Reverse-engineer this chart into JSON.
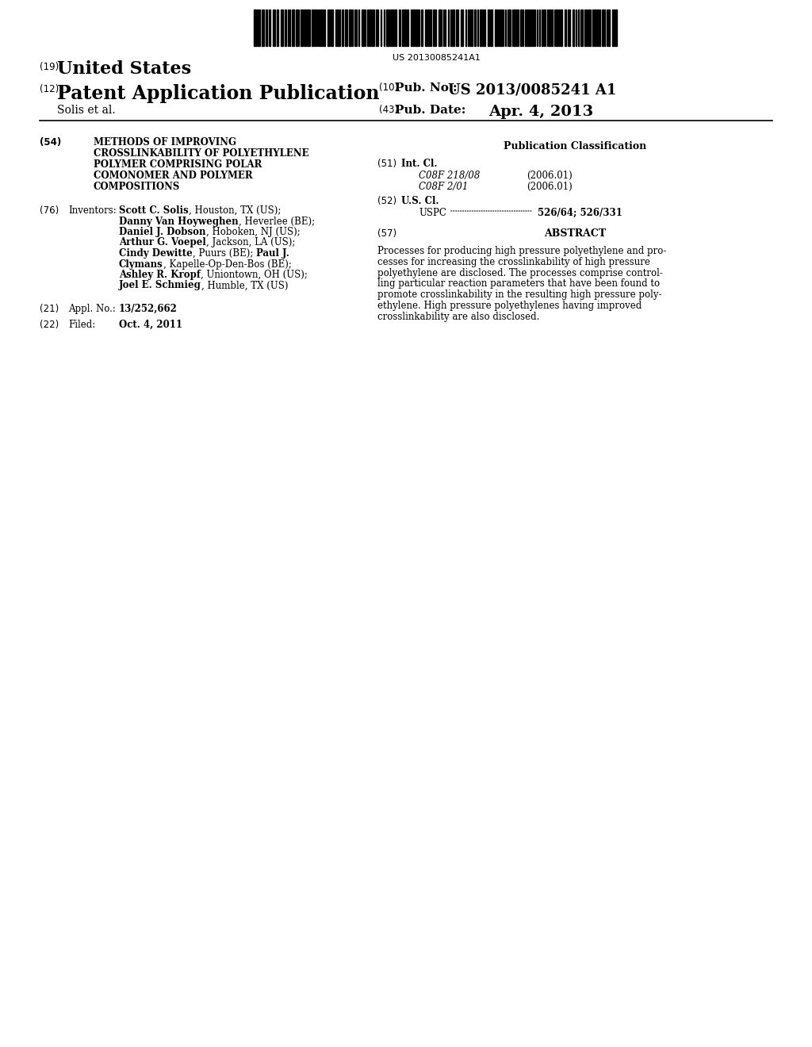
{
  "background_color": "#ffffff",
  "barcode_text": "US 20130085241A1",
  "label_19": "(19)",
  "united_states": "United States",
  "label_12": "(12)",
  "patent_app_pub": "Patent Application Publication",
  "label_10": "(10)",
  "pub_no_label": "Pub. No.:",
  "pub_no_value": "US 2013/0085241 A1",
  "author_line": "Solis et al.",
  "label_43": "(43)",
  "pub_date_label": "Pub. Date:",
  "pub_date_value": "Apr. 4, 2013",
  "label_54": "(54)",
  "title_lines": [
    "METHODS OF IMPROVING",
    "CROSSLINKABILITY OF POLYETHYLENE",
    "POLYMER COMPRISING POLAR",
    "COMONOMER AND POLYMER",
    "COMPOSITIONS"
  ],
  "pub_class_header": "Publication Classification",
  "label_51": "(51)",
  "int_cl_label": "Int. Cl.",
  "int_cl_1_code": "C08F 218/08",
  "int_cl_1_year": "(2006.01)",
  "int_cl_2_code": "C08F 2/01",
  "int_cl_2_year": "(2006.01)",
  "label_52": "(52)",
  "us_cl_label": "U.S. Cl.",
  "uspc_label": "USPC",
  "uspc_value": "526/64; 526/331",
  "label_76": "(76)",
  "inventors_label": "Inventors:",
  "inventors_lines": [
    [
      [
        "Scott C. Solis",
        true
      ],
      [
        ", Houston, TX (US);",
        false
      ]
    ],
    [
      [
        "Danny Van Hoyweghen",
        true
      ],
      [
        ", Heverlee (BE);",
        false
      ]
    ],
    [
      [
        "Daniel J. Dobson",
        true
      ],
      [
        ", Hoboken, NJ (US);",
        false
      ]
    ],
    [
      [
        "Arthur G. Voepel",
        true
      ],
      [
        ", Jackson, LA (US);",
        false
      ]
    ],
    [
      [
        "Cindy Dewitte",
        true
      ],
      [
        ", Puurs (BE); ",
        false
      ],
      [
        "Paul J.",
        true
      ]
    ],
    [
      [
        "Clymans",
        true
      ],
      [
        ", Kapelle-Op-Den-Bos (BE);",
        false
      ]
    ],
    [
      [
        "Ashley R. Kropf",
        true
      ],
      [
        ", Uniontown, OH (US);",
        false
      ]
    ],
    [
      [
        "Joel E. Schmieg",
        true
      ],
      [
        ", Humble, TX (US)",
        false
      ]
    ]
  ],
  "label_21": "(21)",
  "appl_no_label": "Appl. No.:",
  "appl_no_value": "13/252,662",
  "label_22": "(22)",
  "filed_label": "Filed:",
  "filed_value": "Oct. 4, 2011",
  "label_57": "(57)",
  "abstract_header": "ABSTRACT",
  "abstract_lines": [
    "Processes for producing high pressure polyethylene and pro-",
    "cesses for increasing the crosslinkability of high pressure",
    "polyethylene are disclosed. The processes comprise control-",
    "ling particular reaction parameters that have been found to",
    "promote crosslinkability in the resulting high pressure poly-",
    "ethylene. High pressure polyethylenes having improved",
    "crosslinkability are also disclosed."
  ]
}
